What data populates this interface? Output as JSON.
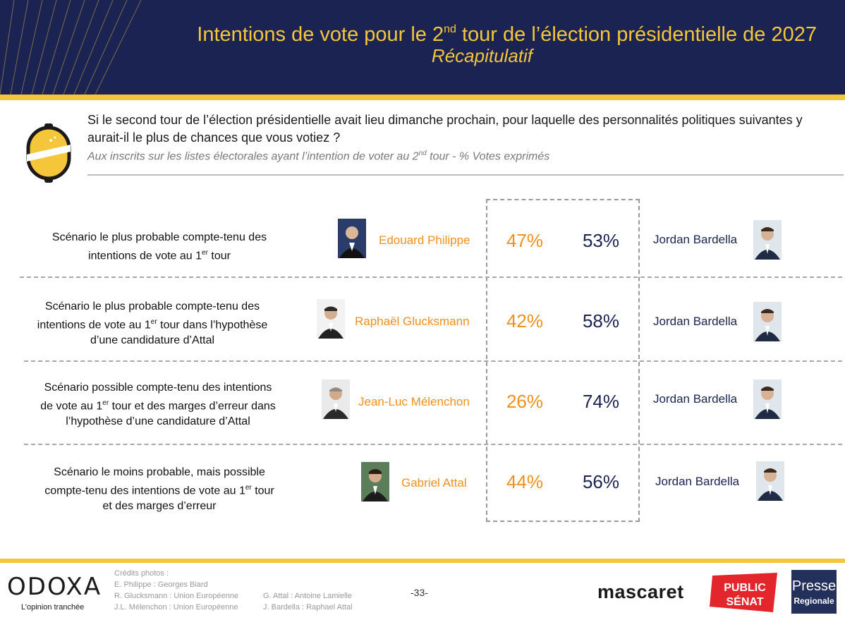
{
  "header": {
    "title_before": "Intentions de vote pour le 2",
    "title_sup": "nd",
    "title_after": " tour de l’élection présidentielle de 2027",
    "subtitle": "Récapitulatif"
  },
  "question": {
    "text": "Si le second tour de l’élection présidentielle avait lieu dimanche prochain, pour laquelle des personnalités politiques suivantes y aurait-il le plus de chances que vous votiez ?",
    "basis_before": "Aux inscrits sur les listes électorales ayant l’intention de voter au 2",
    "basis_sup": "nd",
    "basis_after": " tour  - % Votes exprimés"
  },
  "rows": [
    {
      "scenario_l1": "Scénario le plus probable compte-tenu des",
      "scenario_l2_before": "intentions de vote au 1",
      "scenario_l2_sup": "er",
      "scenario_l2_after": " tour",
      "scenario_l3": "",
      "candidate": "Edouard Philippe",
      "candidate_pct": "47%",
      "opponent_pct": "53%",
      "opponent": "Jordan Bardella"
    },
    {
      "scenario_l1": "Scénario le plus probable compte-tenu des",
      "scenario_l2_before": "intentions de vote au 1",
      "scenario_l2_sup": "er",
      "scenario_l2_after": " tour dans l’hypothèse",
      "scenario_l3": "d’une candidature d’Attal",
      "candidate": "Raphaël Glucksmann",
      "candidate_pct": "42%",
      "opponent_pct": "58%",
      "opponent": "Jordan Bardella"
    },
    {
      "scenario_l1": "Scénario possible compte-tenu des intentions",
      "scenario_l2_before": "de vote au 1",
      "scenario_l2_sup": "er",
      "scenario_l2_after": " tour et des marges d’erreur dans",
      "scenario_l3": "l’hypothèse d’une candidature d’Attal",
      "candidate": "Jean-Luc Mélenchon",
      "candidate_pct": "26%",
      "opponent_pct": "74%",
      "opponent": "Jordan Bardella"
    },
    {
      "scenario_l1": "Scénario le moins probable, mais possible",
      "scenario_l2_before": "compte-tenu des intentions de vote au 1",
      "scenario_l2_sup": "er",
      "scenario_l2_after": " tour",
      "scenario_l3": "et des marges d’erreur",
      "candidate": "Gabriel Attal",
      "candidate_pct": "44%",
      "opponent_pct": "56%",
      "opponent": "Jordan Bardella"
    }
  ],
  "footer": {
    "odoxa_logo": "ODOXA",
    "odoxa_tagline": "L’opinion tranchée",
    "credits_title": "Crédits photos :",
    "credits_col1": [
      "E. Philippe : Georges Biard",
      "R. Glucksmann : Union Européenne",
      "J.L. Mélenchon : Union Européenne"
    ],
    "credits_col2": [
      "G. Attal : Antoine Lamielle",
      "J. Bardella : Raphael Attal"
    ],
    "page_number": "-33-",
    "partner1": "mascaret",
    "partner2_l1": "PUBLIC",
    "partner2_l2": "SÉNAT",
    "partner3_l1": "Presse",
    "partner3_l2": "Regionale"
  },
  "colors": {
    "navy": "#1a2352",
    "gold": "#f5c53a",
    "orange": "#f0901e",
    "publicsenat_red": "#e3262b"
  }
}
